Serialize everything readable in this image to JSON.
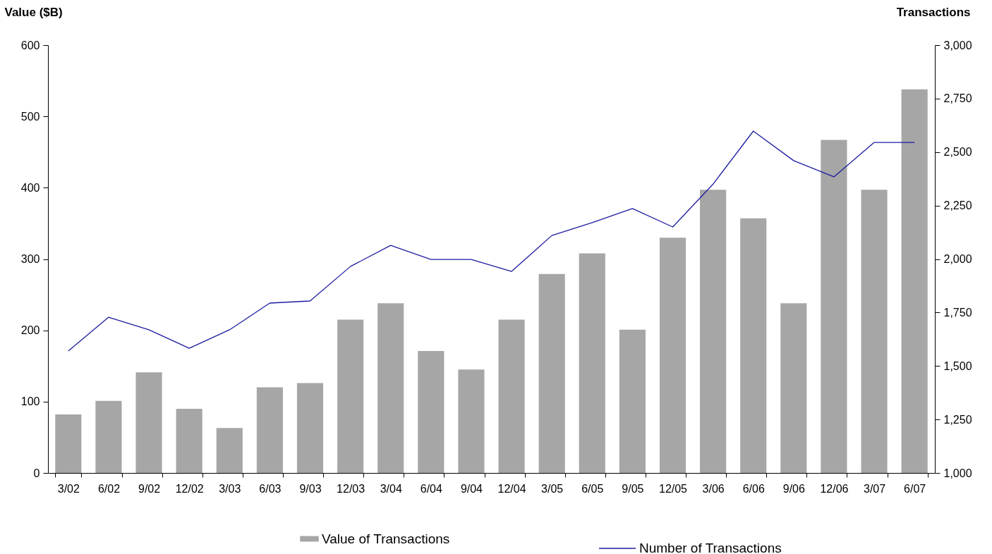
{
  "chart_data": {
    "type": "bar",
    "ylabel": "Value ($B)",
    "y2label": "Transactions",
    "categories": [
      "3/02",
      "6/02",
      "9/02",
      "12/02",
      "3/03",
      "6/03",
      "9/03",
      "12/03",
      "3/04",
      "6/04",
      "9/04",
      "12/04",
      "3/05",
      "6/05",
      "9/05",
      "12/05",
      "3/06",
      "6/06",
      "9/06",
      "12/06",
      "3/07",
      "6/07"
    ],
    "series": [
      {
        "name": "Value of Transactions",
        "color": "#a6a6a6",
        "values": [
          82,
          101,
          141,
          90,
          63,
          120,
          126,
          215,
          238,
          171,
          145,
          215,
          279,
          308,
          201,
          330,
          397,
          357,
          238,
          467,
          397,
          538
        ]
      },
      {
        "name": "Number of Transactions",
        "type": "line",
        "axis": "y2",
        "color": "#1c1ca0",
        "values": [
          1570,
          1728,
          1669,
          1583,
          1669,
          1794,
          1804,
          1965,
          2064,
          1998,
          1998,
          1942,
          2110,
          2170,
          2236,
          2150,
          2350,
          2598,
          2460,
          2384,
          2545,
          2545
        ]
      }
    ],
    "ylim": [
      0,
      600
    ],
    "yticks": [
      0,
      100,
      200,
      300,
      400,
      500,
      600
    ],
    "y2lim": [
      1000,
      3000
    ],
    "y2ticks": [
      {
        "value": 1000,
        "label": "1,000"
      },
      {
        "value": 1250,
        "label": "1,250"
      },
      {
        "value": 1500,
        "label": "1,500"
      },
      {
        "value": 1750,
        "label": "1,750"
      },
      {
        "value": 2000,
        "label": "2,000"
      },
      {
        "value": 2250,
        "label": "2,250"
      },
      {
        "value": 2500,
        "label": "2,500"
      },
      {
        "value": 2750,
        "label": "2,750"
      },
      {
        "value": 3000,
        "label": "3,000"
      }
    ],
    "grid": false,
    "legend": "bottom"
  }
}
